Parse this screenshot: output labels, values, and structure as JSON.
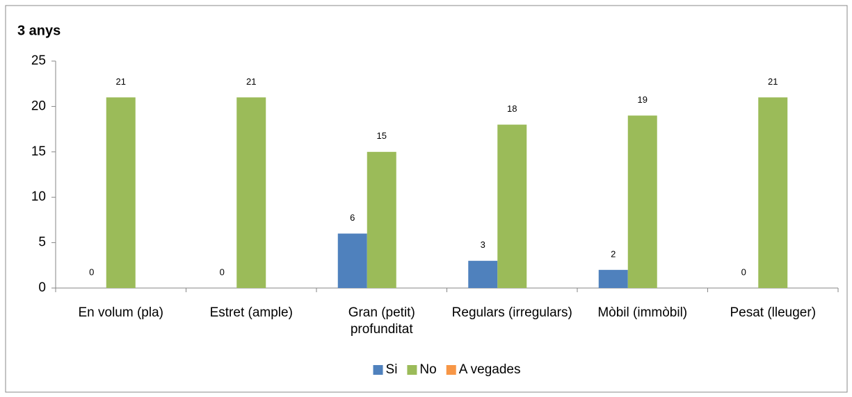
{
  "chart_data": {
    "type": "bar",
    "title": "3 anys",
    "categories": [
      "En volum (pla)",
      "Estret (ample)",
      "Gran (petit) profunditat",
      "Regulars (irregulars)",
      "Mòbil (immòbil)",
      "Pesat (lleuger)"
    ],
    "series": [
      {
        "name": "Si",
        "color": "#4f81bd",
        "values": [
          0,
          0,
          6,
          3,
          2,
          0
        ]
      },
      {
        "name": "No",
        "color": "#9bbb59",
        "values": [
          21,
          21,
          15,
          18,
          19,
          21
        ]
      },
      {
        "name": "A vegades",
        "color": "#f79646",
        "values": [
          0,
          0,
          0,
          0,
          0,
          0
        ]
      }
    ],
    "data_labels": [
      true,
      true,
      false
    ],
    "ylim": [
      0,
      25
    ],
    "yticks": [
      0,
      5,
      10,
      15,
      20,
      25
    ],
    "grid": false,
    "legend": "bottom"
  }
}
